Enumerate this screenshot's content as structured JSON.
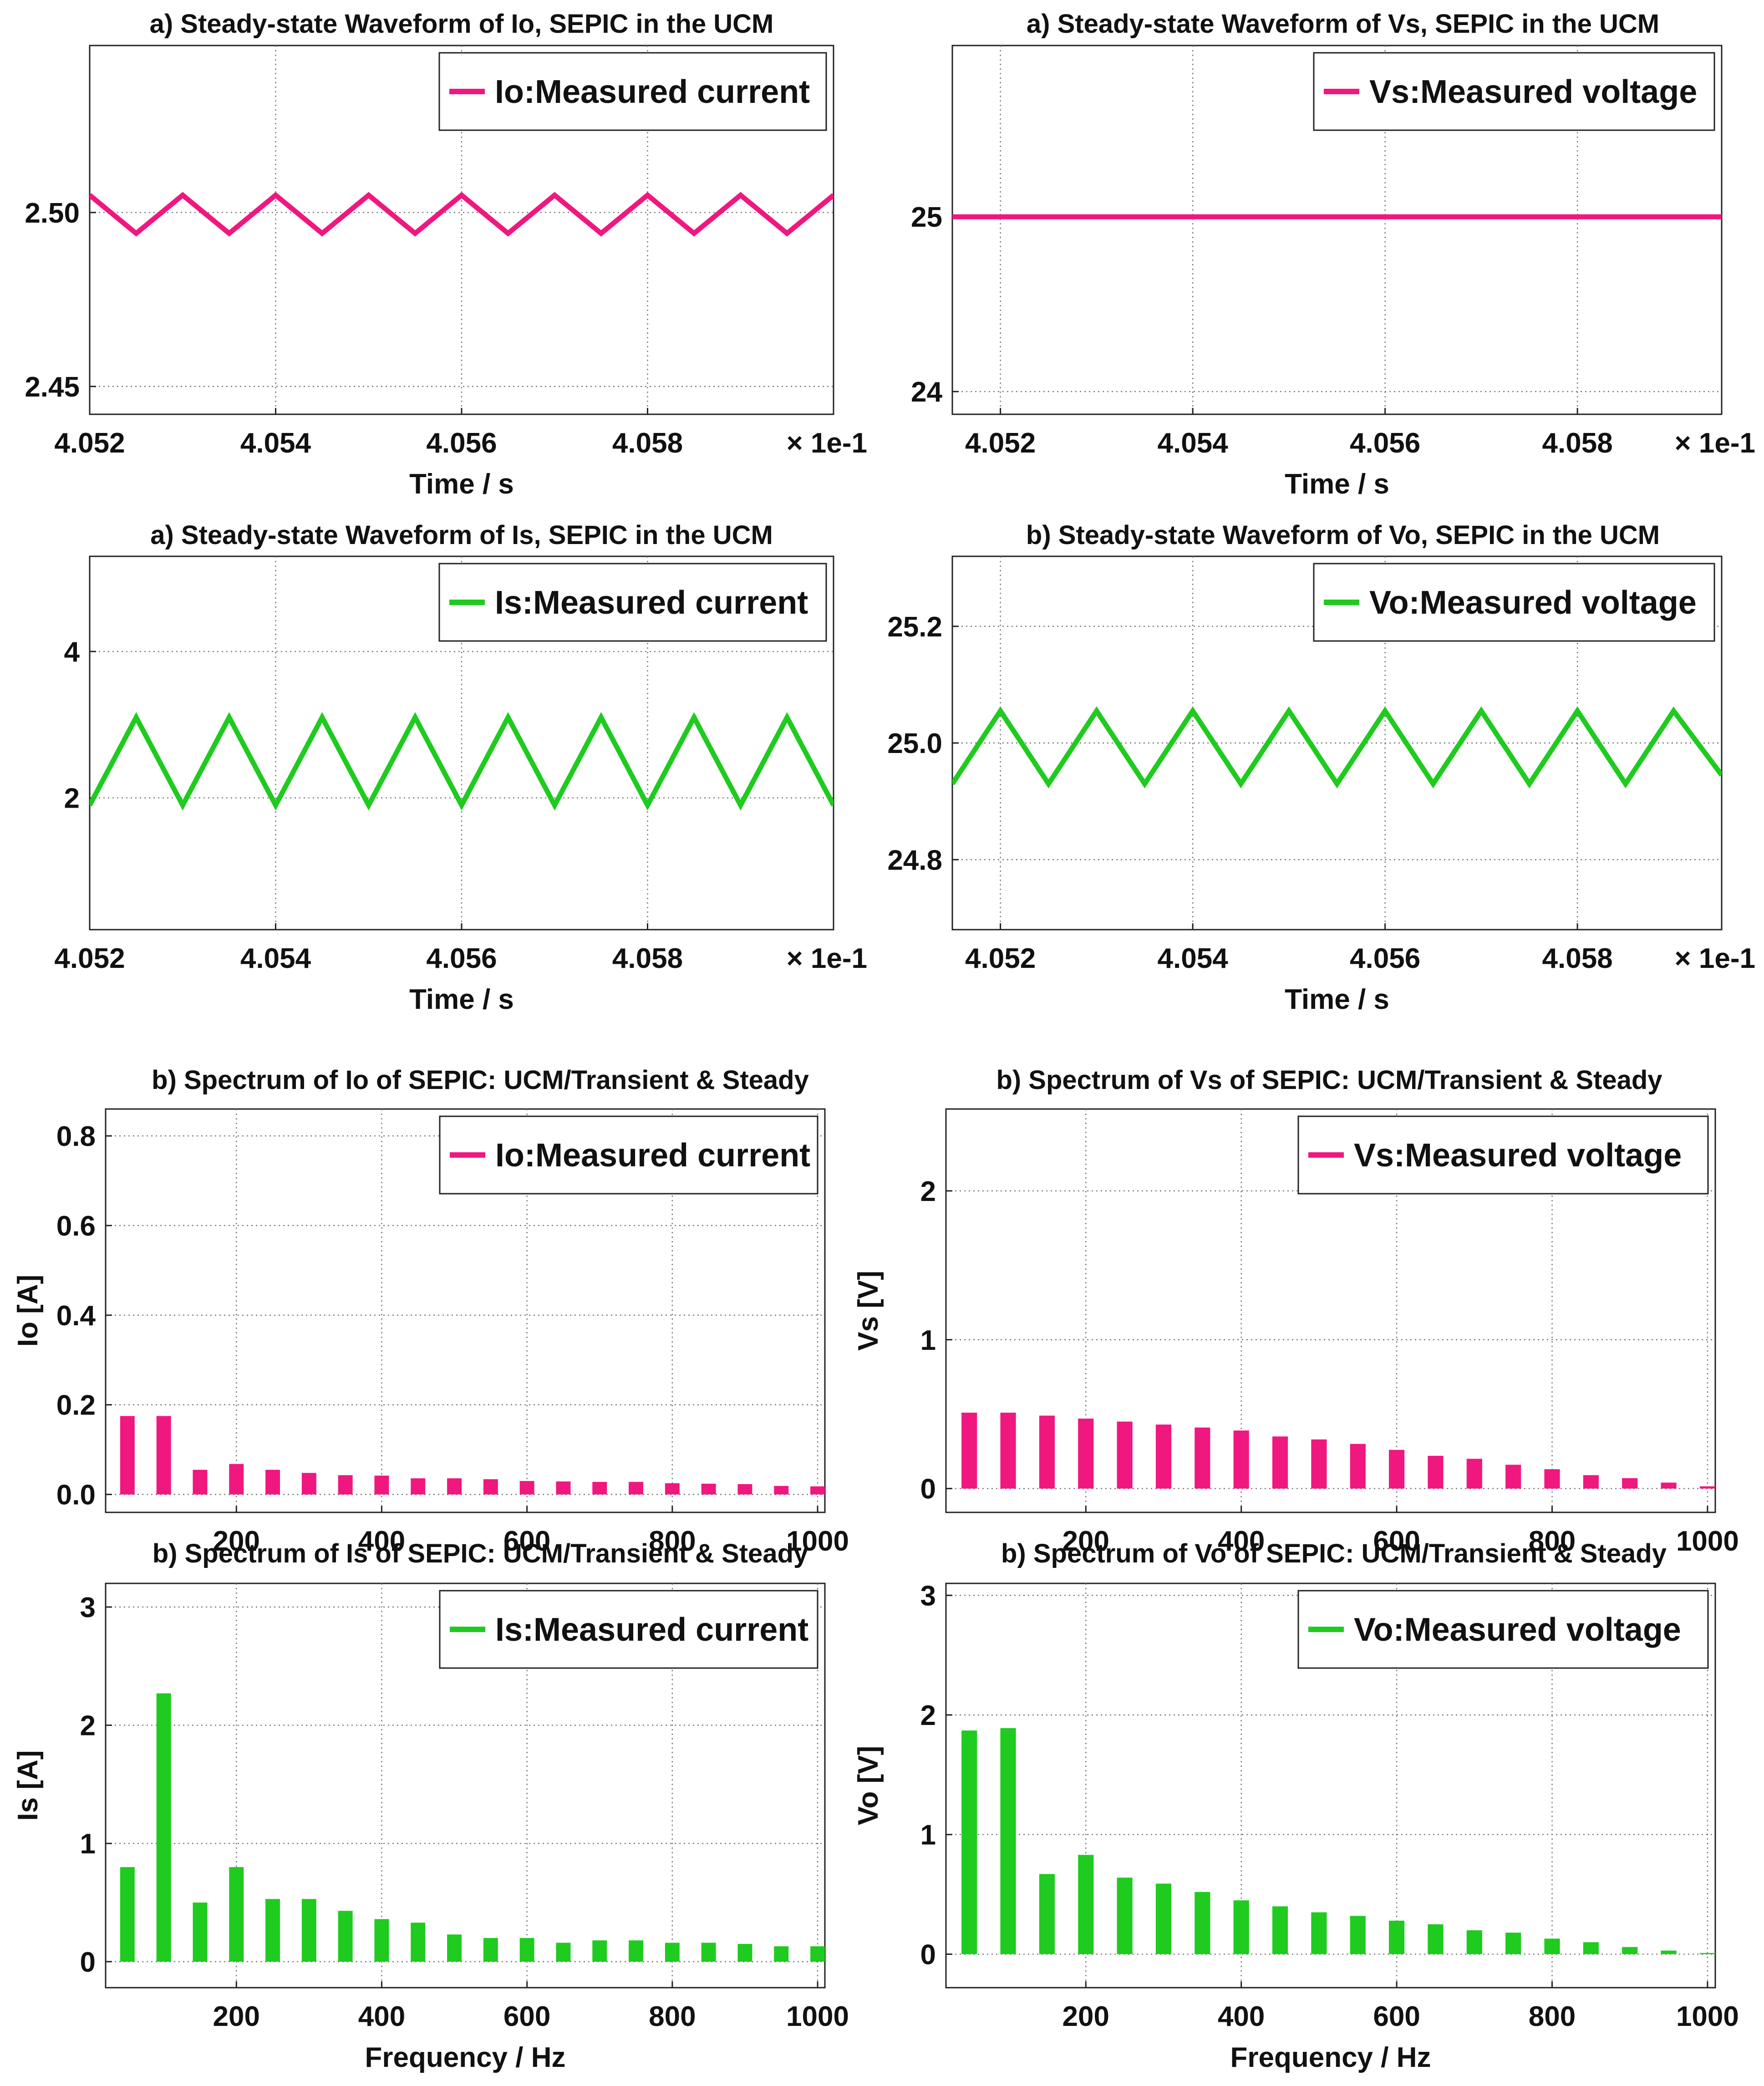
{
  "colors": {
    "magenta": "#f0177f",
    "green": "#1ecb1e"
  },
  "chart_data": [
    {
      "type": "line",
      "title": "a) Steady-state Waveform of Io, SEPIC in the  UCM",
      "xlabel": "Time / s",
      "ylabel": "",
      "x_multiplier": "× 1e-1",
      "xlim": [
        4.052,
        4.06
      ],
      "ylim": [
        2.442,
        2.548
      ],
      "xticks": [
        4.052,
        4.054,
        4.056,
        4.058
      ],
      "xtick_labels": [
        "4.052",
        "4.054",
        "4.056",
        "4.058"
      ],
      "yticks": [
        2.45,
        2.5
      ],
      "ytick_labels": [
        "2.45",
        "2.50"
      ],
      "legend": "Io:Measured current",
      "series": [
        {
          "name": "Io:Measured current",
          "color": "magenta",
          "x": [
            4.052,
            4.0525,
            4.053,
            4.0535,
            4.054,
            4.0545,
            4.055,
            4.0555,
            4.056,
            4.0565,
            4.057,
            4.0575,
            4.058,
            4.0585,
            4.059,
            4.0595,
            4.06
          ],
          "y": [
            2.505,
            2.494,
            2.505,
            2.494,
            2.505,
            2.494,
            2.505,
            2.494,
            2.505,
            2.494,
            2.505,
            2.494,
            2.505,
            2.494,
            2.505,
            2.494,
            2.505
          ]
        }
      ]
    },
    {
      "type": "line",
      "title": "a) Steady-state Waveform of Vs, SEPIC in the  UCM",
      "xlabel": "Time / s",
      "ylabel": "",
      "x_multiplier": "× 1e-1",
      "xlim": [
        4.0515,
        4.0595
      ],
      "ylim": [
        23.87,
        25.98
      ],
      "xticks": [
        4.052,
        4.054,
        4.056,
        4.058
      ],
      "xtick_labels": [
        "4.052",
        "4.054",
        "4.056",
        "4.058"
      ],
      "yticks": [
        24,
        25
      ],
      "ytick_labels": [
        "24",
        "25"
      ],
      "legend": "Vs:Measured voltage",
      "series": [
        {
          "name": "Vs:Measured voltage",
          "color": "magenta",
          "x": [
            4.0515,
            4.0595
          ],
          "y": [
            25.0,
            25.0
          ]
        }
      ]
    },
    {
      "type": "line",
      "title": "a) Steady-state Waveform of Is, SEPIC in the  UCM",
      "xlabel": "Time / s",
      "ylabel": "",
      "x_multiplier": "× 1e-1",
      "xlim": [
        4.052,
        4.06
      ],
      "ylim": [
        0.2,
        5.3
      ],
      "xticks": [
        4.052,
        4.054,
        4.056,
        4.058
      ],
      "xtick_labels": [
        "4.052",
        "4.054",
        "4.056",
        "4.058"
      ],
      "yticks": [
        2,
        4
      ],
      "ytick_labels": [
        "2",
        "4"
      ],
      "legend": "Is:Measured current",
      "series": [
        {
          "name": "Is:Measured current",
          "color": "green",
          "x": [
            4.052,
            4.0525,
            4.053,
            4.0535,
            4.054,
            4.0545,
            4.055,
            4.0555,
            4.056,
            4.0565,
            4.057,
            4.0575,
            4.058,
            4.0585,
            4.059,
            4.0595,
            4.06
          ],
          "y": [
            1.9,
            3.1,
            1.9,
            3.1,
            1.9,
            3.1,
            1.9,
            3.1,
            1.9,
            3.1,
            1.9,
            3.1,
            1.9,
            3.1,
            1.9,
            3.1,
            1.9
          ]
        }
      ]
    },
    {
      "type": "line",
      "title": "b) Steady-state Waveform of Vo, SEPIC in the  UCM",
      "xlabel": "Time / s",
      "ylabel": "",
      "x_multiplier": "× 1e-1",
      "xlim": [
        4.0515,
        4.0595
      ],
      "ylim": [
        24.68,
        25.32
      ],
      "xticks": [
        4.052,
        4.054,
        4.056,
        4.058
      ],
      "xtick_labels": [
        "4.052",
        "4.054",
        "4.056",
        "4.058"
      ],
      "yticks": [
        24.8,
        25.0,
        25.2
      ],
      "ytick_labels": [
        "24.8",
        "25.0",
        "25.2"
      ],
      "legend": "Vo:Measured voltage",
      "series": [
        {
          "name": "Vo:Measured voltage",
          "color": "green",
          "x": [
            4.0515,
            4.052,
            4.0525,
            4.053,
            4.0535,
            4.054,
            4.0545,
            4.055,
            4.0555,
            4.056,
            4.0565,
            4.057,
            4.0575,
            4.058,
            4.0585,
            4.059,
            4.0595
          ],
          "y": [
            24.93,
            25.055,
            24.93,
            25.055,
            24.93,
            25.055,
            24.93,
            25.055,
            24.93,
            25.055,
            24.93,
            25.055,
            24.93,
            25.055,
            24.93,
            25.055,
            24.945
          ]
        }
      ]
    },
    {
      "type": "bar",
      "title": "b) Spectrum of Io of SEPIC: UCM/Transient & Steady",
      "xlabel": "",
      "ylabel": "Io [A]",
      "xlim": [
        20,
        1010
      ],
      "ylim": [
        -0.04,
        0.86
      ],
      "xticks": [
        200,
        400,
        600,
        800,
        1000
      ],
      "xtick_labels": [
        "200",
        "400",
        "600",
        "800",
        "1000"
      ],
      "yticks": [
        0.0,
        0.2,
        0.4,
        0.6,
        0.8
      ],
      "ytick_labels": [
        "0.0",
        "0.2",
        "0.4",
        "0.6",
        "0.8"
      ],
      "legend": "Io:Measured current",
      "series": [
        {
          "name": "Io:Measured current",
          "color": "magenta",
          "x": [
            50,
            100,
            150,
            200,
            250,
            300,
            350,
            400,
            450,
            500,
            550,
            600,
            650,
            700,
            750,
            800,
            850,
            900,
            950,
            1000
          ],
          "values": [
            0.175,
            0.175,
            0.055,
            0.068,
            0.055,
            0.048,
            0.043,
            0.042,
            0.036,
            0.036,
            0.034,
            0.03,
            0.029,
            0.028,
            0.028,
            0.025,
            0.024,
            0.023,
            0.019,
            0.018
          ]
        }
      ]
    },
    {
      "type": "bar",
      "title": "b) Spectrum of Vs of SEPIC: UCM/Transient & Steady",
      "xlabel": "",
      "ylabel": "Vs [V]",
      "xlim": [
        20,
        1010
      ],
      "ylim": [
        -0.16,
        2.55
      ],
      "xticks": [
        200,
        400,
        600,
        800,
        1000
      ],
      "xtick_labels": [
        "200",
        "400",
        "600",
        "800",
        "1000"
      ],
      "yticks": [
        0,
        1,
        2
      ],
      "ytick_labels": [
        "0",
        "1",
        "2"
      ],
      "legend": "Vs:Measured voltage",
      "series": [
        {
          "name": "Vs:Measured voltage",
          "color": "magenta",
          "x": [
            50,
            100,
            150,
            200,
            250,
            300,
            350,
            400,
            450,
            500,
            550,
            600,
            650,
            700,
            750,
            800,
            850,
            900,
            950,
            1000
          ],
          "values": [
            0.51,
            0.51,
            0.49,
            0.47,
            0.45,
            0.43,
            0.41,
            0.39,
            0.35,
            0.33,
            0.3,
            0.26,
            0.22,
            0.2,
            0.16,
            0.13,
            0.09,
            0.07,
            0.04,
            0.015
          ]
        }
      ]
    },
    {
      "type": "bar",
      "title": "b) Spectrum of Is of SEPIC: UCM/Transient & Steady",
      "xlabel": "Frequency / Hz",
      "ylabel": "Is [A]",
      "xlim": [
        20,
        1010
      ],
      "ylim": [
        -0.22,
        3.2
      ],
      "xticks": [
        200,
        400,
        600,
        800,
        1000
      ],
      "xtick_labels": [
        "200",
        "400",
        "600",
        "800",
        "1000"
      ],
      "yticks": [
        0,
        1,
        2,
        3
      ],
      "ytick_labels": [
        "0",
        "1",
        "2",
        "3"
      ],
      "legend": "Is:Measured current",
      "series": [
        {
          "name": "Is:Measured current",
          "color": "green",
          "x": [
            50,
            100,
            150,
            200,
            250,
            300,
            350,
            400,
            450,
            500,
            550,
            600,
            650,
            700,
            750,
            800,
            850,
            900,
            950,
            1000
          ],
          "values": [
            0.8,
            2.27,
            0.5,
            0.8,
            0.53,
            0.53,
            0.43,
            0.36,
            0.33,
            0.23,
            0.2,
            0.2,
            0.16,
            0.18,
            0.18,
            0.16,
            0.16,
            0.15,
            0.13,
            0.13
          ]
        }
      ]
    },
    {
      "type": "bar",
      "title": "b) Spectrum of Vo of SEPIC: UCM/Transient & Steady",
      "xlabel": "Frequency / Hz",
      "ylabel": "Vo [V]",
      "xlim": [
        20,
        1010
      ],
      "ylim": [
        -0.28,
        3.1
      ],
      "xticks": [
        200,
        400,
        600,
        800,
        1000
      ],
      "xtick_labels": [
        "200",
        "400",
        "600",
        "800",
        "1000"
      ],
      "yticks": [
        0,
        1,
        2,
        3
      ],
      "ytick_labels": [
        "0",
        "1",
        "2",
        "3"
      ],
      "legend": "Vo:Measured voltage",
      "series": [
        {
          "name": "Vo:Measured voltage",
          "color": "green",
          "x": [
            50,
            100,
            150,
            200,
            250,
            300,
            350,
            400,
            450,
            500,
            550,
            600,
            650,
            700,
            750,
            800,
            850,
            900,
            950,
            1000
          ],
          "values": [
            1.87,
            1.89,
            0.67,
            0.83,
            0.64,
            0.59,
            0.52,
            0.45,
            0.4,
            0.35,
            0.32,
            0.28,
            0.25,
            0.2,
            0.18,
            0.13,
            0.1,
            0.06,
            0.03,
            0.01
          ]
        }
      ]
    }
  ]
}
